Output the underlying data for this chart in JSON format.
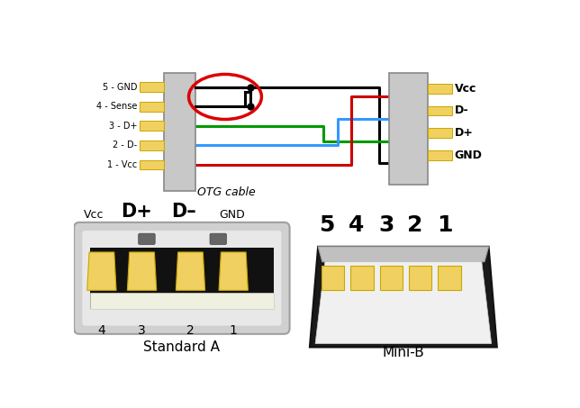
{
  "bg_color": "#ffffff",
  "left_pin_labels": [
    "5 - GND",
    "4 - Sense",
    "3 - D+",
    "2 - D-",
    "1 - Vcc"
  ],
  "right_pin_labels": [
    "Vcc",
    "D-",
    "D+",
    "GND"
  ],
  "otg_label": "OTG cable",
  "std_a_pin_labels": [
    "Vcc",
    "D+",
    "D–",
    "GND"
  ],
  "std_a_num_labels": [
    "4",
    "3",
    "2",
    "1"
  ],
  "std_a_label": "Standard A",
  "mini_b_num_labels": [
    "5",
    "4",
    "3",
    "2",
    "1"
  ],
  "mini_b_label": "Mini-B",
  "pin_color": "#f0d060",
  "pin_edge_color": "#c8a800",
  "connector_gray": "#c8c8c8",
  "connector_light": "#e8e8e8",
  "connector_dark": "#1a1a1a",
  "connector_inner": "#0d0d0d",
  "connector_white": "#f5f5e8",
  "wire_black": "#000000",
  "wire_red": "#cc0000",
  "wire_blue": "#3399ff",
  "wire_green": "#009900",
  "circle_red": "#dd0000",
  "lw": 2.2
}
